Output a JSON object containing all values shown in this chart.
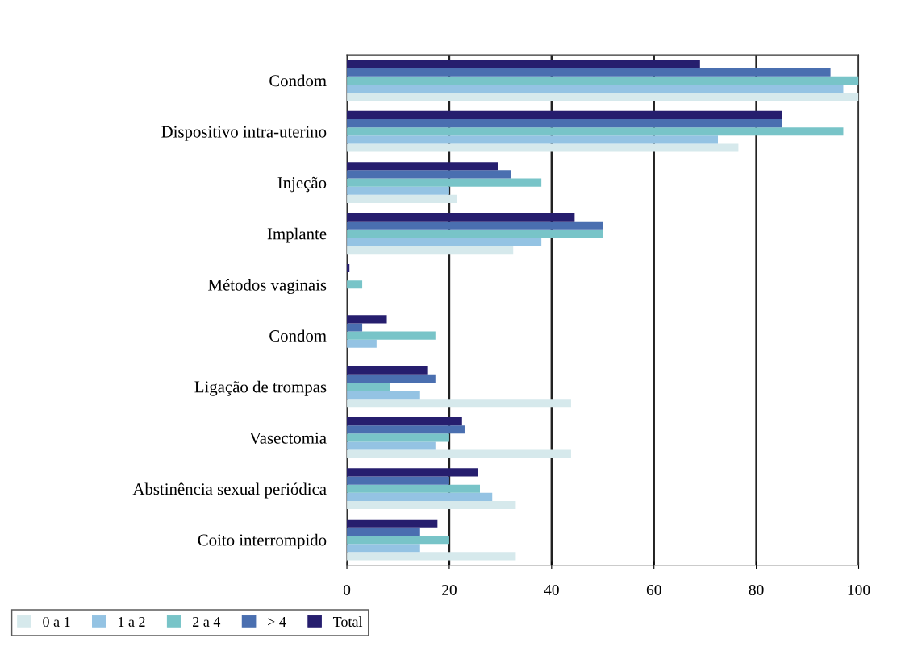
{
  "chart_data": {
    "type": "bar",
    "orientation": "horizontal",
    "categories": [
      "Condom",
      "Dispositivo intra-uterino",
      "Injeção",
      "Implante",
      "Métodos vaginais",
      "Condom",
      "Ligação de trompas",
      "Vasectomia",
      "Abstinência sexual periódica",
      "Coito interrompido"
    ],
    "series": [
      {
        "name": "0 a 1",
        "color": "#d6e9ec",
        "values": [
          100,
          76.5,
          21.5,
          32.5,
          0,
          0,
          43.8,
          43.8,
          33,
          33
        ]
      },
      {
        "name": "1 a 2",
        "color": "#94c3e3",
        "values": [
          97,
          72.5,
          20,
          38,
          0,
          5.8,
          14.3,
          17.3,
          28.4,
          14.3
        ]
      },
      {
        "name": "2 a 4",
        "color": "#78c4c8",
        "values": [
          100,
          97,
          38,
          50,
          3,
          17.3,
          8.5,
          20,
          26,
          20
        ]
      },
      {
        "name": "> 4",
        "color": "#4a6fb0",
        "values": [
          94.5,
          85,
          32,
          50,
          0,
          3,
          17.3,
          23,
          20,
          14.3
        ]
      },
      {
        "name": "Total",
        "color": "#261e6e",
        "values": [
          69,
          85,
          29.5,
          44.5,
          0.5,
          7.8,
          15.7,
          22.5,
          25.6,
          17.7
        ]
      }
    ],
    "xlim": [
      0,
      100
    ],
    "xticks": [
      0,
      20,
      40,
      60,
      80,
      100
    ],
    "grid": "x",
    "legend": "bottom left"
  }
}
